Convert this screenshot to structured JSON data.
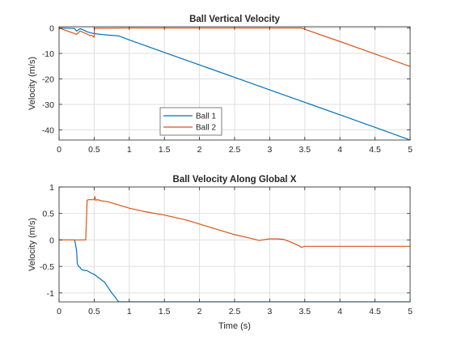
{
  "chart_data": [
    {
      "type": "line",
      "title": "Ball Vertical Velocity",
      "xlabel": "",
      "ylabel": "Velocity (m/s)",
      "xlim": [
        0,
        5
      ],
      "ylim": [
        -44,
        0.5
      ],
      "xticks": [
        0,
        0.5,
        1,
        1.5,
        2,
        2.5,
        3,
        3.5,
        4,
        4.5,
        5
      ],
      "xtick_labels": [
        "0",
        "0.5",
        "1",
        "1.5",
        "2",
        "2.5",
        "3",
        "3.5",
        "4",
        "4.5",
        "5"
      ],
      "yticks": [
        0,
        -10,
        -20,
        -30,
        -40
      ],
      "ytick_labels": [
        "0",
        "-10",
        "-20",
        "-30",
        "-40"
      ],
      "grid": true,
      "legend": {
        "placement": "lower-left-center",
        "entries": [
          "Ball 1",
          "Ball 2"
        ]
      },
      "series": [
        {
          "name": "Ball 1",
          "color": "#0072BD",
          "x": [
            0,
            0.22,
            0.25,
            0.3,
            0.35,
            0.4,
            0.45,
            0.5,
            0.6,
            0.7,
            0.8,
            0.85,
            1.0,
            1.5,
            2.0,
            2.5,
            3.0,
            3.5,
            4.0,
            4.5,
            5.0
          ],
          "y": [
            0,
            -0.2,
            -1.2,
            -0.3,
            -0.8,
            -1.5,
            -1.9,
            -2.2,
            -2.5,
            -2.8,
            -3.0,
            -3.1,
            -4.7,
            -9.6,
            -14.5,
            -19.4,
            -24.3,
            -29.2,
            -34.1,
            -39.0,
            -44.0
          ]
        },
        {
          "name": "Ball 2",
          "color": "#D95319",
          "x": [
            0,
            0.05,
            0.1,
            0.15,
            0.2,
            0.25,
            0.3,
            0.35,
            0.4,
            0.44,
            0.46,
            0.5,
            0.505,
            0.51,
            0.6,
            1.0,
            1.5,
            2.0,
            2.5,
            3.0,
            3.45,
            3.5,
            4.0,
            4.5,
            5.0
          ],
          "y": [
            0,
            -0.5,
            -1.0,
            -1.5,
            -2.0,
            -2.5,
            -1.2,
            -1.8,
            -2.4,
            -3.0,
            -2.9,
            -3.6,
            0,
            -0.1,
            -0.1,
            0,
            0,
            0,
            0,
            0,
            0,
            -0.5,
            -5.3,
            -10.2,
            -15.1
          ]
        }
      ]
    },
    {
      "type": "line",
      "title": "Ball Velocity Along Global X",
      "xlabel": "Time (s)",
      "ylabel": "Velocity (m/s)",
      "xlim": [
        0,
        5
      ],
      "ylim": [
        -1.17,
        1
      ],
      "xticks": [
        0,
        0.5,
        1,
        1.5,
        2,
        2.5,
        3,
        3.5,
        4,
        4.5,
        5
      ],
      "xtick_labels": [
        "0",
        "0.5",
        "1",
        "1.5",
        "2",
        "2.5",
        "3",
        "3.5",
        "4",
        "4.5",
        "5"
      ],
      "yticks": [
        1,
        0.5,
        0,
        -0.5,
        -1
      ],
      "ytick_labels": [
        "1",
        "0.5",
        "0",
        "-0.5",
        "-1"
      ],
      "grid": true,
      "series": [
        {
          "name": "Ball 1",
          "color": "#0072BD",
          "x": [
            0,
            0.22,
            0.23,
            0.25,
            0.26,
            0.28,
            0.3,
            0.32,
            0.35,
            0.38,
            0.4,
            0.45,
            0.5,
            0.55,
            0.6,
            0.65,
            0.7,
            0.75,
            0.8,
            0.82,
            0.85,
            1.0,
            1.5,
            2.0,
            2.5,
            3.0,
            3.5,
            4.0,
            4.5,
            5.0
          ],
          "y": [
            0,
            0,
            -0.05,
            -0.2,
            -0.45,
            -0.5,
            -0.52,
            -0.56,
            -0.57,
            -0.58,
            -0.58,
            -0.62,
            -0.65,
            -0.7,
            -0.75,
            -0.8,
            -0.9,
            -1.0,
            -1.08,
            -1.12,
            -1.17,
            -1.17,
            -1.17,
            -1.17,
            -1.17,
            -1.17,
            -1.17,
            -1.17,
            -1.17,
            -1.17
          ]
        },
        {
          "name": "Ball 2",
          "color": "#D95319",
          "x": [
            0,
            0.2,
            0.38,
            0.4,
            0.42,
            0.5,
            0.51,
            0.52,
            0.55,
            0.6,
            0.7,
            0.8,
            1.0,
            1.2,
            1.5,
            1.8,
            2.0,
            2.2,
            2.5,
            2.7,
            2.85,
            3.0,
            3.1,
            3.2,
            3.3,
            3.42,
            3.45,
            3.5,
            4.0,
            4.5,
            5.0
          ],
          "y": [
            0,
            0,
            0,
            0.75,
            0.76,
            0.76,
            0.82,
            0.75,
            0.76,
            0.74,
            0.72,
            0.68,
            0.6,
            0.54,
            0.47,
            0.38,
            0.3,
            0.22,
            0.1,
            0.04,
            -0.01,
            0.02,
            0.02,
            0.01,
            -0.04,
            -0.11,
            -0.14,
            -0.12,
            -0.12,
            -0.12,
            -0.12
          ]
        }
      ]
    }
  ]
}
